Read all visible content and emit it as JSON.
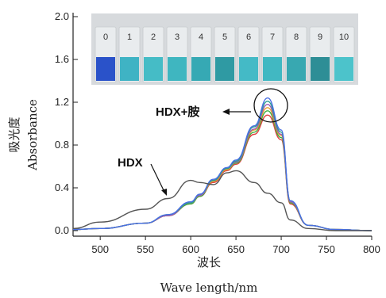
{
  "chart_data": {
    "type": "line",
    "title": "",
    "xlabel": "波长",
    "xlabel_en": "Wave length/nm",
    "ylabel": "吸光度",
    "ylabel_en": "Absorbance",
    "xlim": [
      470,
      800
    ],
    "ylim": [
      -0.05,
      2.0
    ],
    "x_ticks": [
      500,
      550,
      600,
      650,
      700,
      750,
      800
    ],
    "y_ticks": [
      0.0,
      0.4,
      0.8,
      1.2,
      1.6,
      2.0
    ],
    "y_tick_labels": [
      "0.0",
      "0.4",
      "0.8",
      "1.2",
      "1.6",
      "2.0"
    ],
    "grid": false,
    "x": [
      470,
      500,
      550,
      575,
      600,
      610,
      625,
      640,
      650,
      670,
      685,
      700,
      710,
      730,
      760,
      800
    ],
    "series": [
      {
        "name": "HDX",
        "color": "#555555",
        "values": [
          0.02,
          0.08,
          0.2,
          0.3,
          0.47,
          0.45,
          0.43,
          0.54,
          0.56,
          0.45,
          0.35,
          0.26,
          0.1,
          0.02,
          0.0,
          0.0
        ]
      },
      {
        "color": "#e04040",
        "values": [
          0.01,
          0.02,
          0.07,
          0.14,
          0.25,
          0.32,
          0.45,
          0.56,
          0.62,
          0.9,
          1.08,
          0.85,
          0.25,
          0.05,
          0.01,
          0.0
        ]
      },
      {
        "color": "#3fae3f",
        "values": [
          0.01,
          0.02,
          0.07,
          0.14,
          0.25,
          0.32,
          0.46,
          0.57,
          0.63,
          0.92,
          1.12,
          0.87,
          0.26,
          0.05,
          0.01,
          0.0
        ]
      },
      {
        "color": "#e8a030",
        "values": [
          0.01,
          0.02,
          0.07,
          0.14,
          0.26,
          0.33,
          0.46,
          0.57,
          0.64,
          0.94,
          1.15,
          0.89,
          0.27,
          0.05,
          0.01,
          0.0
        ]
      },
      {
        "color": "#9b59b6",
        "values": [
          0.01,
          0.02,
          0.07,
          0.14,
          0.26,
          0.33,
          0.47,
          0.58,
          0.64,
          0.95,
          1.18,
          0.9,
          0.27,
          0.05,
          0.01,
          0.0
        ]
      },
      {
        "color": "#2a9d8f",
        "values": [
          0.01,
          0.02,
          0.07,
          0.15,
          0.26,
          0.34,
          0.47,
          0.58,
          0.65,
          0.97,
          1.21,
          0.92,
          0.28,
          0.05,
          0.01,
          0.0
        ]
      },
      {
        "color": "#4a6fe3",
        "values": [
          0.01,
          0.02,
          0.07,
          0.15,
          0.27,
          0.34,
          0.48,
          0.59,
          0.66,
          0.98,
          1.24,
          0.94,
          0.28,
          0.05,
          0.01,
          0.0
        ]
      }
    ],
    "annotations": [
      {
        "text": "HDX+胺"
      },
      {
        "text": "HDX"
      }
    ],
    "inset": {
      "vial_labels": [
        "0",
        "1",
        "2",
        "3",
        "4",
        "5",
        "6",
        "7",
        "8",
        "9",
        "10"
      ],
      "vial_colors": [
        "#2a52c9",
        "#3fb3c4",
        "#45bcc6",
        "#3fb6c0",
        "#36a9b4",
        "#2f9aa3",
        "#44bac6",
        "#41b8c2",
        "#38a8b1",
        "#2e8e96",
        "#4cc3cb"
      ]
    }
  }
}
